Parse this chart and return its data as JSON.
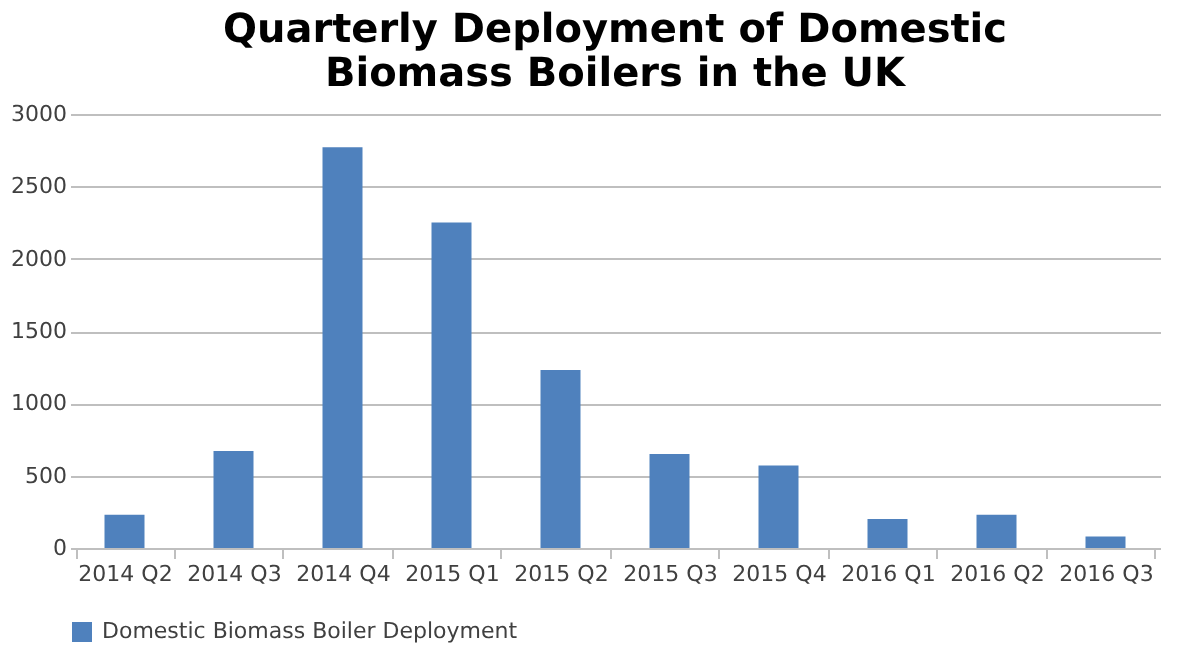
{
  "chart_data": {
    "type": "bar",
    "title": [
      "Quarterly Deployment of Domestic",
      "Biomass Boilers in the UK"
    ],
    "categories": [
      "2014 Q2",
      "2014 Q3",
      "2014 Q4",
      "2015 Q1",
      "2015 Q2",
      "2015 Q3",
      "2015 Q4",
      "2016 Q1",
      "2016 Q2",
      "2016 Q3"
    ],
    "series": [
      {
        "name": "Domestic Biomass Boiler Deployment",
        "color": "#4f81bd",
        "values": [
          230,
          670,
          2770,
          2250,
          1230,
          650,
          570,
          200,
          230,
          80
        ]
      }
    ],
    "ylim": [
      0,
      3000
    ],
    "yticks": [
      0,
      500,
      1000,
      1500,
      2000,
      2500,
      3000
    ],
    "grid": "y",
    "legend": "bottom"
  }
}
